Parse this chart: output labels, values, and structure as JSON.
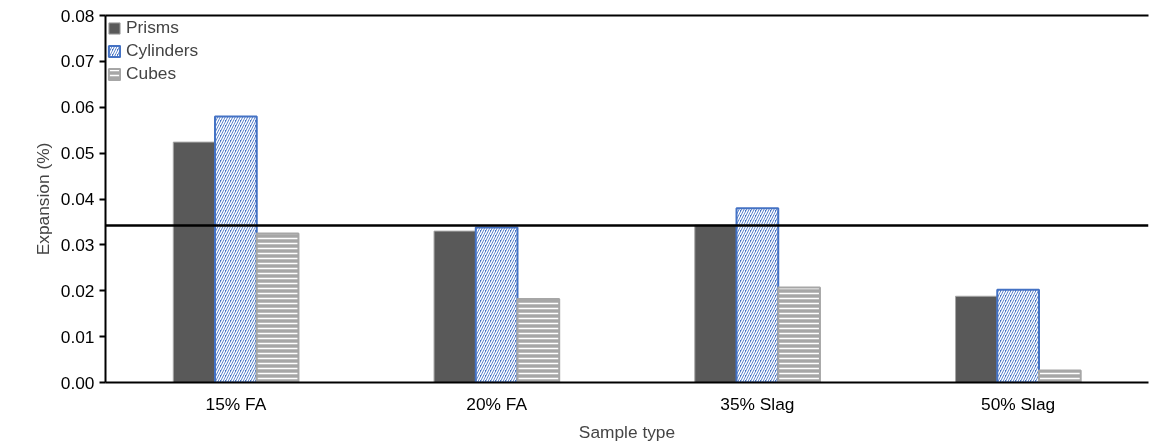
{
  "chart_data": {
    "type": "bar",
    "xlabel": "Sample type",
    "ylabel": "Expansion (%)",
    "categories": [
      "15% FA",
      "20% FA",
      "35% Slag",
      "50% Slag"
    ],
    "series": [
      {
        "name": "Prisms",
        "color": "#595959",
        "values": [
          0.0524,
          0.033,
          0.0343,
          0.0188
        ]
      },
      {
        "name": "Cylinders",
        "color": "#4472c4",
        "values": [
          0.058,
          0.0338,
          0.038,
          0.0202
        ]
      },
      {
        "name": "Cubes",
        "color": "#a6a6a6",
        "values": [
          0.0325,
          0.0182,
          0.0207,
          0.0026
        ]
      }
    ],
    "ylim": [
      0,
      0.08
    ],
    "yticks": [
      {
        "value": 0,
        "label": "0.00"
      },
      {
        "value": 0.01,
        "label": "0.01"
      },
      {
        "value": 0.02,
        "label": "0.02"
      },
      {
        "value": 0.03,
        "label": "0.03"
      },
      {
        "value": 0.04,
        "label": "0.04"
      },
      {
        "value": 0.05,
        "label": "0.05"
      },
      {
        "value": 0.06,
        "label": "0.06"
      },
      {
        "value": 0.07,
        "label": "0.07"
      },
      {
        "value": 0.08,
        "label": "0.08"
      }
    ],
    "ref_lines": [
      {
        "axis": "y",
        "value": 0.0342,
        "color": "#000000"
      }
    ],
    "grid": false,
    "legend": "top left"
  }
}
